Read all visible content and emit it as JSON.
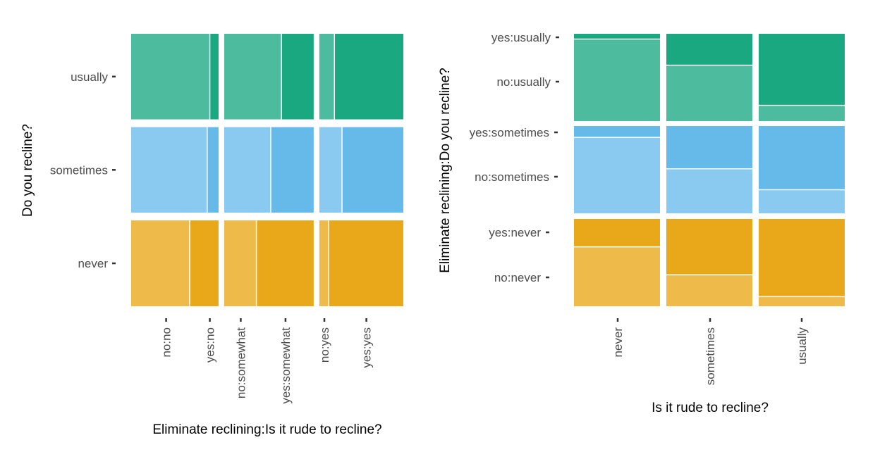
{
  "colors": {
    "usually": {
      "light": "#4dbb9e",
      "dark": "#1aa880"
    },
    "sometimes": {
      "light": "#8acaf0",
      "dark": "#66baea"
    },
    "never": {
      "light": "#eebb4b",
      "dark": "#e8a81a"
    },
    "tick": "#333333",
    "tick_label": "#4d4d4d",
    "title": "#000000"
  },
  "chart_data": [
    {
      "type": "mosaic",
      "xlabel": "Eliminate reclining:Is it rude to recline?",
      "ylabel": "Do you recline?",
      "x_groups": [
        {
          "name": "no",
          "width": 0.335,
          "categories": [
            {
              "label": "no:no",
              "width": 0.8
            },
            {
              "label": "yes:no",
              "width": 0.2
            }
          ]
        },
        {
          "name": "somewhat",
          "width": 0.343,
          "categories": [
            {
              "label": "no:somewhat",
              "width": 0.37
            },
            {
              "label": "yes:somewhat",
              "width": 0.63
            }
          ]
        },
        {
          "name": "yes",
          "width": 0.322,
          "categories": [
            {
              "label": "no:yes",
              "width": 0.12
            },
            {
              "label": "yes:yes",
              "width": 0.88
            }
          ]
        }
      ],
      "y_levels": [
        {
          "label": "usually",
          "share": 0.333,
          "color": "usually",
          "split": [
            {
              "group": "no",
              "values": [
                0.9,
                0.1
              ]
            },
            {
              "group": "somewhat",
              "values": [
                0.64,
                0.36
              ]
            },
            {
              "group": "yes",
              "values": [
                0.18,
                0.82
              ]
            }
          ]
        },
        {
          "label": "sometimes",
          "share": 0.333,
          "color": "sometimes",
          "split": [
            {
              "group": "no",
              "values": [
                0.87,
                0.13
              ]
            },
            {
              "group": "somewhat",
              "values": [
                0.52,
                0.48
              ]
            },
            {
              "group": "yes",
              "values": [
                0.27,
                0.73
              ]
            }
          ]
        },
        {
          "label": "never",
          "share": 0.334,
          "color": "never",
          "split": [
            {
              "group": "no",
              "values": [
                0.67,
                0.33
              ]
            },
            {
              "group": "somewhat",
              "values": [
                0.36,
                0.64
              ]
            },
            {
              "group": "yes",
              "values": [
                0.11,
                0.89
              ]
            }
          ]
        }
      ]
    },
    {
      "type": "mosaic",
      "xlabel": "Is it rude to recline?",
      "ylabel": "Eliminate reclining:Do you recline?",
      "x_categories": [
        "never",
        "sometimes",
        "usually"
      ],
      "y_groups": [
        {
          "name": "usually",
          "color": "usually",
          "tick_labels": [
            "yes:usually",
            "no:usually"
          ]
        },
        {
          "name": "sometimes",
          "color": "sometimes",
          "tick_labels": [
            "yes:sometimes",
            "no:sometimes"
          ]
        },
        {
          "name": "never",
          "color": "never",
          "tick_labels": [
            "yes:never",
            "no:never"
          ]
        }
      ],
      "cells": [
        {
          "x": "never",
          "group": "usually",
          "yes": 0.06,
          "no": 0.94
        },
        {
          "x": "never",
          "group": "sometimes",
          "yes": 0.13,
          "no": 0.87
        },
        {
          "x": "never",
          "group": "never",
          "yes": 0.32,
          "no": 0.68
        },
        {
          "x": "sometimes",
          "group": "usually",
          "yes": 0.36,
          "no": 0.64
        },
        {
          "x": "sometimes",
          "group": "sometimes",
          "yes": 0.49,
          "no": 0.51
        },
        {
          "x": "sometimes",
          "group": "never",
          "yes": 0.64,
          "no": 0.36
        },
        {
          "x": "usually",
          "group": "usually",
          "yes": 0.82,
          "no": 0.18
        },
        {
          "x": "usually",
          "group": "sometimes",
          "yes": 0.73,
          "no": 0.27
        },
        {
          "x": "usually",
          "group": "never",
          "yes": 0.89,
          "no": 0.11
        }
      ]
    }
  ]
}
